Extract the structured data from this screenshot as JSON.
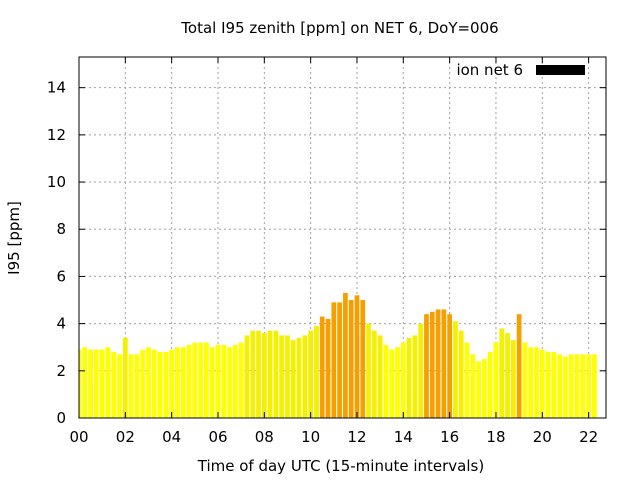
{
  "chart_data": {
    "type": "bar",
    "title": "Total I95 zenith [ppm] on NET 6, DoY=006",
    "xlabel": "Time of day UTC (15-minute intervals)",
    "ylabel": "I95 [ppm]",
    "xlim": [
      0,
      22.75
    ],
    "ylim": [
      0,
      15.3
    ],
    "grid": true,
    "legend": {
      "position": "top-right",
      "entries": [
        {
          "label": "ion net 6",
          "color": "#000000"
        }
      ]
    },
    "x_ticks": [
      "00",
      "02",
      "04",
      "06",
      "08",
      "10",
      "12",
      "14",
      "16",
      "18",
      "20",
      "22"
    ],
    "y_ticks": [
      "0",
      "2",
      "4",
      "6",
      "8",
      "10",
      "12",
      "14"
    ],
    "colors": {
      "low": "#ffff00",
      "mid": "#f5f000",
      "high": "#f5a000"
    },
    "interval_hours": 0.25,
    "values": [
      2.9,
      3.0,
      2.9,
      2.9,
      2.9,
      3.0,
      2.8,
      2.7,
      3.4,
      2.7,
      2.7,
      2.9,
      3.0,
      2.9,
      2.8,
      2.8,
      2.9,
      3.0,
      3.0,
      3.1,
      3.2,
      3.2,
      3.2,
      3.0,
      3.1,
      3.1,
      3.0,
      3.1,
      3.2,
      3.5,
      3.7,
      3.7,
      3.6,
      3.7,
      3.7,
      3.5,
      3.5,
      3.3,
      3.4,
      3.5,
      3.7,
      3.9,
      4.3,
      4.2,
      4.9,
      4.9,
      5.3,
      5.0,
      5.2,
      5.0,
      4.0,
      3.7,
      3.5,
      3.1,
      2.9,
      3.0,
      3.2,
      3.4,
      3.5,
      4.0,
      4.4,
      4.5,
      4.6,
      4.6,
      4.4,
      4.1,
      3.7,
      3.2,
      2.7,
      2.4,
      2.5,
      2.8,
      3.2,
      3.8,
      3.6,
      3.3,
      4.4,
      3.2,
      3.0,
      3.0,
      2.9,
      2.8,
      2.8,
      2.7,
      2.6,
      2.7,
      2.7,
      2.7,
      2.7,
      2.7
    ]
  }
}
